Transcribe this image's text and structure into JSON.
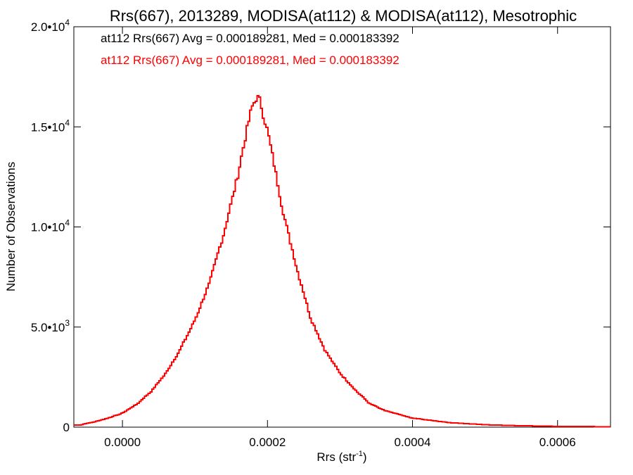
{
  "chart_data": {
    "type": "step-histogram",
    "title": "Rrs(667), 2013289, MODISA(at112) & MODISA(at112), Mesotrophic",
    "xlabel": "Rrs (str",
    "xlabel_sup": "-1",
    "xlabel_close": ")",
    "ylabel": "Number of Observations",
    "xlim": [
      -6.7e-05,
      0.000673
    ],
    "ylim": [
      0,
      20000
    ],
    "x_ticks": [
      0.0,
      0.0002,
      0.0004,
      0.0006
    ],
    "x_tick_labels": [
      "0.0000",
      "0.0002",
      "0.0004",
      "0.0006"
    ],
    "y_ticks": [
      0,
      5000,
      10000,
      15000,
      20000
    ],
    "y_tick_labels": [
      {
        "base": "0",
        "exp": ""
      },
      {
        "base": "5.0•10",
        "exp": "3"
      },
      {
        "base": "1.0•10",
        "exp": "4"
      },
      {
        "base": "1.5•10",
        "exp": "4"
      },
      {
        "base": "2.0•10",
        "exp": "4"
      }
    ],
    "annotations": [
      {
        "text": "at112 Rrs(667) Avg = 0.000189281, Med = 0.000183392",
        "color": "#000000"
      },
      {
        "text": "at112 Rrs(667) Avg = 0.000189281, Med = 0.000183392",
        "color": "#ff0000"
      }
    ],
    "series": [
      {
        "color": "#ff0000",
        "points": [
          [
            -6e-05,
            100
          ],
          [
            -4e-05,
            250
          ],
          [
            -2e-05,
            450
          ],
          [
            0.0,
            700
          ],
          [
            2e-05,
            1150
          ],
          [
            4e-05,
            1800
          ],
          [
            6e-05,
            2700
          ],
          [
            8e-05,
            3900
          ],
          [
            0.0001,
            5350
          ],
          [
            0.00012,
            7200
          ],
          [
            0.00014,
            9700
          ],
          [
            0.00016,
            12700
          ],
          [
            0.00017,
            14600
          ],
          [
            0.000178,
            15900
          ],
          [
            0.000185,
            16500
          ],
          [
            0.00019,
            16300
          ],
          [
            0.000195,
            15500
          ],
          [
            0.0002,
            14800
          ],
          [
            0.00021,
            13000
          ],
          [
            0.00022,
            11000
          ],
          [
            0.00024,
            8000
          ],
          [
            0.00026,
            5400
          ],
          [
            0.00028,
            3800
          ],
          [
            0.0003,
            2700
          ],
          [
            0.00032,
            1900
          ],
          [
            0.00034,
            1200
          ],
          [
            0.00036,
            850
          ],
          [
            0.0004,
            450
          ],
          [
            0.00045,
            230
          ],
          [
            0.0005,
            120
          ],
          [
            0.00055,
            70
          ],
          [
            0.0006,
            40
          ],
          [
            0.000673,
            20
          ]
        ]
      }
    ]
  }
}
